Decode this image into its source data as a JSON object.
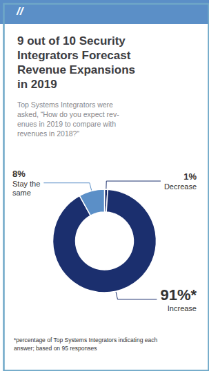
{
  "chart_data": {
    "type": "pie",
    "title": "9 out of 10 Security\nIntegrators Forecast\nRevenue Expansions\nin 2019",
    "subtitle": "Top Systems Integrators were\nasked, “How do you expect rev-\nenues in 2019 to compare with\nrevenues in 2018?”",
    "annotations": [
      "//",
      "*percentage of Top Systems Integrators indicating each\nanswer; based on 95 responses"
    ],
    "categories": [
      "Decrease",
      "Increase",
      "Stay the\nsame"
    ],
    "values": [
      1,
      91,
      8
    ],
    "value_labels": [
      "1%",
      "91%*",
      "8%"
    ],
    "colors": [
      "#1b2f6e",
      "#1b2f6e",
      "#5b8fc7"
    ]
  }
}
